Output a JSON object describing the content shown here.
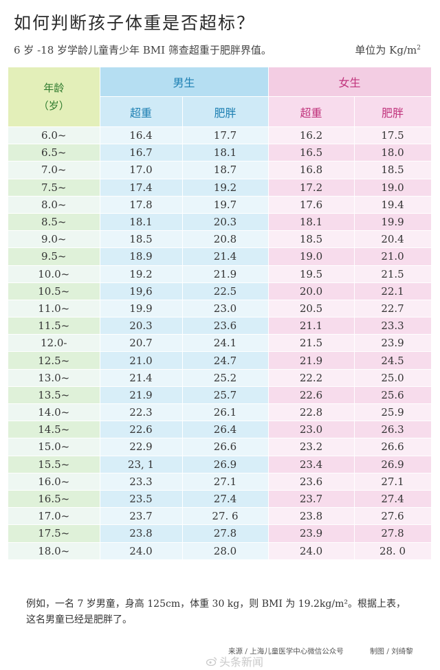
{
  "title": "如何判断孩子体重是否超标？",
  "subtitle": "6 岁 -18 岁学龄儿童青少年 BMI 筛查超重于肥胖界值。",
  "unit": {
    "text": "单位为 Kg/m",
    "sup": "2"
  },
  "table": {
    "age_header_1": "年龄",
    "age_header_2": "（岁）",
    "male_header": "男生",
    "female_header": "女生",
    "male_overweight": "超重",
    "male_obese": "肥胖",
    "female_overweight": "超重",
    "female_obese": "肥胖",
    "rows": [
      [
        "6.0~",
        "16.4",
        "17.7",
        "16.2",
        "17.5"
      ],
      [
        "6.5~",
        "16.7",
        "18.1",
        "16.5",
        "18.0"
      ],
      [
        "7.0~",
        "17.0",
        "18.7",
        "16.8",
        "18.5"
      ],
      [
        "7.5~",
        "17.4",
        "19.2",
        "17.2",
        "19.0"
      ],
      [
        "8.0~",
        "17.8",
        "19.7",
        "17.6",
        "19.4"
      ],
      [
        "8.5~",
        "18.1",
        "20.3",
        "18.1",
        "19.9"
      ],
      [
        "9.0~",
        "18.5",
        "20.8",
        "18.5",
        "20.4"
      ],
      [
        "9.5~",
        "18.9",
        "21.4",
        "19.0",
        "21.0"
      ],
      [
        "10.0~",
        "19.2",
        "21.9",
        "19.5",
        "21.5"
      ],
      [
        "10.5~",
        "19,6",
        "22.5",
        "20.0",
        "22.1"
      ],
      [
        "11.0~",
        "19.9",
        "23.0",
        "20.5",
        "22.7"
      ],
      [
        "11.5~",
        "20.3",
        "23.6",
        "21.1",
        "23.3"
      ],
      [
        "12.0-",
        "20.7",
        "24.1",
        "21.5",
        "23.9"
      ],
      [
        "12.5~",
        "21.0",
        "24.7",
        "21.9",
        "24.5"
      ],
      [
        "13.0~",
        "21.4",
        "25.2",
        "22.2",
        "25.0"
      ],
      [
        "13.5~",
        "21.9",
        "25.7",
        "22.6",
        "25.6"
      ],
      [
        "14.0~",
        "22.3",
        "26.1",
        "22.8",
        "25.9"
      ],
      [
        "14.5~",
        "22.6",
        "26.4",
        "23.0",
        "26.3"
      ],
      [
        "15.0~",
        "22.9",
        "26.6",
        "23.2",
        "26.6"
      ],
      [
        "15.5~",
        "23, 1",
        "26.9",
        "23.4",
        "26.9"
      ],
      [
        "16.0~",
        "23.3",
        "27.1",
        "23.6",
        "27.1"
      ],
      [
        "16.5~",
        "23.5",
        "27.4",
        "23.7",
        "27.4"
      ],
      [
        "17.0~",
        "23.7",
        "27. 6",
        "23.8",
        "27.6"
      ],
      [
        "17.5~",
        "23.8",
        "27.8",
        "23.9",
        "27.8"
      ],
      [
        "18.0~",
        "24.0",
        "28.0",
        "24.0",
        "28. 0"
      ]
    ]
  },
  "example_line1": "例如，一名 7 岁男童，身高 125cm，体重 30 kg，则 BMI 为 19.2kg/m²。根据上表，",
  "example_line2": "这名男童已经是肥胖了。",
  "source": "来源 / 上海儿童医学中心微信公众号",
  "credit": "制图 / 刘绮黎",
  "watermark": "头条新闻"
}
